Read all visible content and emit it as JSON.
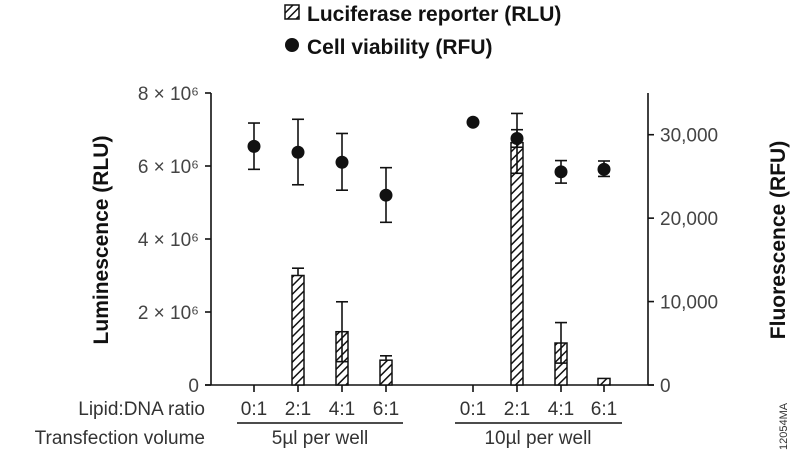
{
  "chart_data": {
    "type": "bar",
    "legend": {
      "position": "top-center",
      "entries": [
        {
          "label": "Luciferase reporter (RLU)",
          "marker": "hatched-bar"
        },
        {
          "label": "Cell viability (RFU)",
          "marker": "filled-circle"
        }
      ]
    },
    "left_axis": {
      "label": "Luminescence (RLU)",
      "ylim": [
        0,
        8000000
      ],
      "ticks": [
        0,
        2000000,
        4000000,
        6000000,
        8000000
      ],
      "tick_labels": [
        "0",
        "2 × 10⁶",
        "4 × 10⁶",
        "6 × 10⁶",
        "8 × 10⁶"
      ]
    },
    "right_axis": {
      "label": "Fluorescence (RFU)",
      "ylim": [
        0,
        35000
      ],
      "ticks": [
        0,
        10000,
        20000,
        30000
      ],
      "tick_labels": [
        "0",
        "10,000",
        "20,000",
        "30,000"
      ]
    },
    "row_labels": [
      "Lipid:DNA ratio",
      "Transfection volume"
    ],
    "groups": [
      {
        "label": "5µl per well",
        "categories": [
          "0:1",
          "2:1",
          "4:1",
          "6:1"
        ]
      },
      {
        "label": "10µl per well",
        "categories": [
          "0:1",
          "2:1",
          "4:1",
          "6:1"
        ]
      }
    ],
    "grid": false,
    "series": [
      {
        "name": "Luciferase reporter (RLU)",
        "axis": "left",
        "type": "bar",
        "values": [
          0,
          3000000,
          1460000,
          680000,
          0,
          6640000,
          1150000,
          180000
        ],
        "error_upper": [
          null,
          3200000,
          2280000,
          800000,
          null,
          7440000,
          1710000,
          null
        ],
        "error_lower": [
          null,
          null,
          640000,
          null,
          null,
          5800000,
          600000,
          null
        ]
      },
      {
        "name": "Cell viability (RFU)",
        "axis": "right",
        "type": "scatter",
        "values": [
          28600,
          27900,
          26700,
          22750,
          31500,
          29550,
          25550,
          25850
        ],
        "error_upper": [
          31400,
          31850,
          30150,
          26050,
          null,
          30600,
          26900,
          26850
        ],
        "error_lower": [
          25850,
          24000,
          23350,
          19500,
          null,
          28500,
          24200,
          25000
        ]
      }
    ],
    "figure_code": "12054MA"
  },
  "colors": {
    "ink": "#111111",
    "tick_text": "#444444",
    "background": "#ffffff"
  }
}
